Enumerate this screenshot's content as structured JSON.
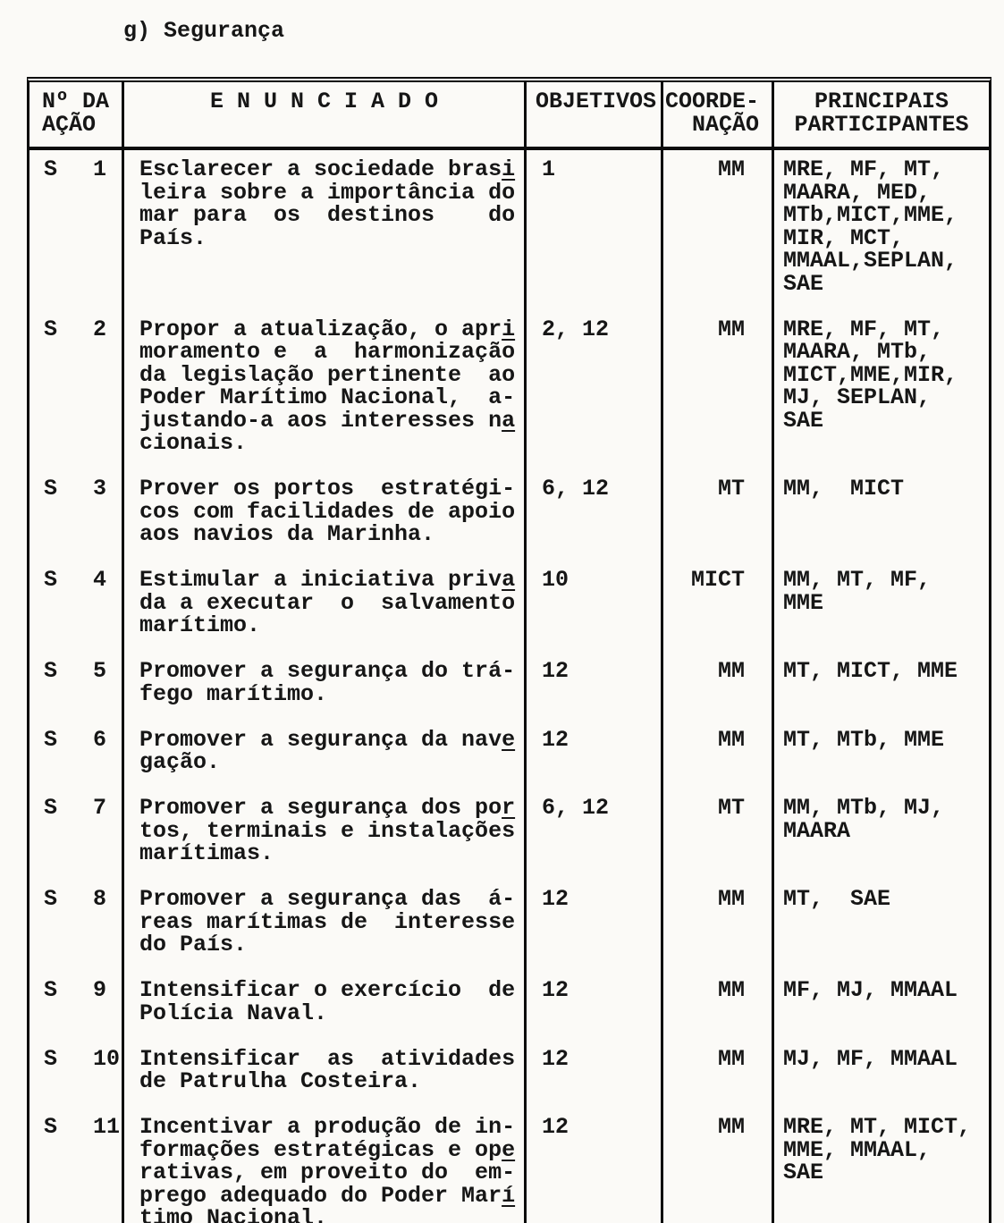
{
  "colors": {
    "ink": "#161616",
    "paper": "#fbfaf7"
  },
  "page": {
    "title": "g) Segurança"
  },
  "table": {
    "headers": {
      "col1": [
        "Nº DA",
        "AÇÃO"
      ],
      "col2": "E N U N C I A D O",
      "col3": "OBJETIVOS",
      "col4": [
        "COORDE-",
        "NAÇÃO"
      ],
      "col5": [
        "PRINCIPAIS",
        "PARTICIPANTES"
      ]
    },
    "rows": [
      {
        "action_prefix": "S",
        "action_number": "1",
        "enunciado": [
          [
            {
              "t": "Esclarecer a sociedade bras"
            },
            {
              "t": "i",
              "u": true
            }
          ],
          [
            {
              "t": "leira sobre a importância do"
            }
          ],
          [
            {
              "t": "mar para  os  destinos    do"
            }
          ],
          [
            {
              "t": "País."
            }
          ]
        ],
        "objetivos": "1",
        "coordenacao": "MM",
        "participantes": [
          "MRE, MF, MT,",
          "MAARA, MED,",
          "MTb,MICT,MME,",
          "MIR, MCT,",
          "MMAAL,SEPLAN,",
          "SAE"
        ]
      },
      {
        "action_prefix": "S",
        "action_number": "2",
        "enunciado": [
          [
            {
              "t": "Propor a atualização, o apr"
            },
            {
              "t": "i",
              "u": true
            }
          ],
          [
            {
              "t": "moramento e  a  harmonização"
            }
          ],
          [
            {
              "t": "da legislação pertinente  ao"
            }
          ],
          [
            {
              "t": "Poder Marítimo Nacional,  a-"
            }
          ],
          [
            {
              "t": "justando-a aos interesses n"
            },
            {
              "t": "a",
              "u": true
            }
          ],
          [
            {
              "t": "cionais."
            }
          ]
        ],
        "objetivos": "2, 12",
        "coordenacao": "MM",
        "participantes": [
          "MRE, MF, MT,",
          "MAARA, MTb,",
          "MICT,MME,MIR,",
          "MJ, SEPLAN,",
          "SAE"
        ]
      },
      {
        "action_prefix": "S",
        "action_number": "3",
        "enunciado": [
          [
            {
              "t": "Prover os portos  estratégi-"
            }
          ],
          [
            {
              "t": "cos com facilidades de apoio"
            }
          ],
          [
            {
              "t": "aos navios da Marinha."
            }
          ]
        ],
        "objetivos": "6, 12",
        "coordenacao": "MT",
        "participantes": [
          "MM,  MICT"
        ]
      },
      {
        "action_prefix": "S",
        "action_number": "4",
        "enunciado": [
          [
            {
              "t": "Estimular a iniciativa priv"
            },
            {
              "t": "a",
              "u": true
            }
          ],
          [
            {
              "t": "da a executar  o  salvamento"
            }
          ],
          [
            {
              "t": "marítimo."
            }
          ]
        ],
        "objetivos": "10",
        "coordenacao": "MICT",
        "participantes": [
          "MM, MT, MF,",
          "MME"
        ]
      },
      {
        "action_prefix": "S",
        "action_number": "5",
        "enunciado": [
          [
            {
              "t": "Promover a segurança do trá-"
            }
          ],
          [
            {
              "t": "fego marítimo."
            }
          ]
        ],
        "objetivos": "12",
        "coordenacao": "MM",
        "participantes": [
          "MT, MICT, MME"
        ]
      },
      {
        "action_prefix": "S",
        "action_number": "6",
        "enunciado": [
          [
            {
              "t": "Promover a segurança da nav"
            },
            {
              "t": "e",
              "u": true
            }
          ],
          [
            {
              "t": "gação."
            }
          ]
        ],
        "objetivos": "12",
        "coordenacao": "MM",
        "participantes": [
          "MT, MTb, MME"
        ]
      },
      {
        "action_prefix": "S",
        "action_number": "7",
        "enunciado": [
          [
            {
              "t": "Promover a segurança dos po"
            },
            {
              "t": "r",
              "u": true
            }
          ],
          [
            {
              "t": "tos, terminais e instalações"
            }
          ],
          [
            {
              "t": "marítimas."
            }
          ]
        ],
        "objetivos": "6, 12",
        "coordenacao": "MT",
        "participantes": [
          "MM, MTb, MJ,",
          "MAARA"
        ]
      },
      {
        "action_prefix": "S",
        "action_number": "8",
        "enunciado": [
          [
            {
              "t": "Promover a segurança das  á-"
            }
          ],
          [
            {
              "t": "reas marítimas de  interesse"
            }
          ],
          [
            {
              "t": "do País."
            }
          ]
        ],
        "objetivos": "12",
        "coordenacao": "MM",
        "participantes": [
          "MT,  SAE"
        ]
      },
      {
        "action_prefix": "S",
        "action_number": "9",
        "enunciado": [
          [
            {
              "t": "Intensificar o exercício  de"
            }
          ],
          [
            {
              "t": "Polícia Naval."
            }
          ]
        ],
        "objetivos": "12",
        "coordenacao": "MM",
        "participantes": [
          "MF, MJ, MMAAL"
        ]
      },
      {
        "action_prefix": "S",
        "action_number": "10",
        "enunciado": [
          [
            {
              "t": "Intensificar  as  atividades"
            }
          ],
          [
            {
              "t": "de Patrulha Costeira."
            }
          ]
        ],
        "objetivos": "12",
        "coordenacao": "MM",
        "participantes": [
          "MJ, MF, MMAAL"
        ]
      },
      {
        "action_prefix": "S",
        "action_number": "11",
        "enunciado": [
          [
            {
              "t": "Incentivar a produção de in-"
            }
          ],
          [
            {
              "t": "formações estratégicas e op"
            },
            {
              "t": "e",
              "u": true
            }
          ],
          [
            {
              "t": "rativas, em proveito do  em-"
            }
          ],
          [
            {
              "t": "prego adequado do Poder Mar"
            },
            {
              "t": "í",
              "u": true
            }
          ],
          [
            {
              "t": "timo Nacional."
            }
          ]
        ],
        "objetivos": "12",
        "coordenacao": "MM",
        "participantes": [
          "MRE, MT, MICT,",
          "MME, MMAAL,",
          "SAE"
        ]
      }
    ]
  }
}
